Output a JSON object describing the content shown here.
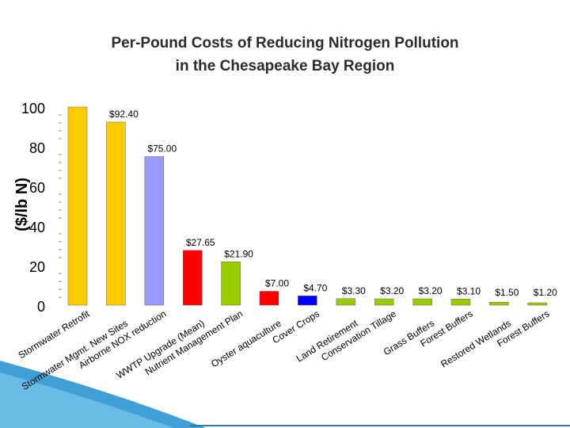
{
  "chart_data": {
    "type": "bar",
    "title_line1": "Per-Pound Costs of Reducing Nitrogen Pollution",
    "title_line2": "in the Chesapeake Bay Region",
    "ylabel": "($/lb N)",
    "xlabel": "",
    "ylim": [
      0,
      100
    ],
    "yticks": [
      "0",
      "20",
      "40",
      "60",
      "80",
      "100"
    ],
    "grid": false,
    "categories": [
      "Stormwater Retrofit",
      "Stormwater Mgmt. New Sites",
      "Airborne NOX reduction",
      "WWTP Upgrade (Mean)",
      "Nutrient Management Plan",
      "Oyster aquaculture",
      "Cover Crops",
      "Land Retirement",
      "Conservation Tillage",
      "Grass Buffers",
      "Forest Buffers",
      "Restored Wetlands",
      "Forest Buffers"
    ],
    "values": [
      100,
      92.4,
      75.0,
      27.65,
      21.9,
      7.0,
      4.7,
      3.3,
      3.2,
      3.2,
      3.1,
      1.5,
      1.2
    ],
    "labels": [
      "",
      "$92.40",
      "$75.00",
      "$27.65",
      "$21.90",
      "$7.00",
      "$4.70",
      "$3.30",
      "$3.20",
      "$3.20",
      "$3.10",
      "$1.50",
      "$1.20"
    ],
    "colors": [
      "#ffcc00",
      "#ffcc00",
      "#9999ff",
      "#ff0000",
      "#99cc00",
      "#ff0000",
      "#0000ff",
      "#99cc00",
      "#99cc00",
      "#99cc00",
      "#99cc00",
      "#99cc00",
      "#99cc00"
    ]
  }
}
